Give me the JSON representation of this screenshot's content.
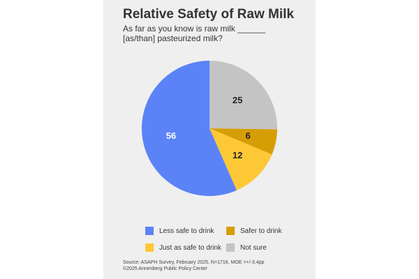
{
  "chart_data": {
    "type": "pie",
    "title": "Relative Safety of Raw Milk",
    "subtitle_lines": [
      "As far as you know is raw milk ______",
      "[as/than] pasteurized milk?"
    ],
    "slices": [
      {
        "label": "Not sure",
        "value": 25,
        "color": "#c4c4c4",
        "label_color": "#222222"
      },
      {
        "label": "Safer to drink",
        "value": 6,
        "color": "#d69e05",
        "label_color": "#222222"
      },
      {
        "label": "Just as safe to drink",
        "value": 12,
        "color": "#fdc835",
        "label_color": "#222222"
      },
      {
        "label": "Less safe to drink",
        "value": 56,
        "color": "#5b83f7",
        "label_color": "#ffffff"
      }
    ],
    "legend": [
      {
        "label": "Less safe to drink",
        "color": "#5b83f7"
      },
      {
        "label": "Safer to drink",
        "color": "#d69e05"
      },
      {
        "label": "Just as safe to drink",
        "color": "#fdc835"
      },
      {
        "label": "Not sure",
        "color": "#c4c4c4"
      }
    ],
    "legend_position": "bottom"
  },
  "source_lines": [
    "Source: ASAPH Survey, February 2025, N=1716, MOE =+/-3.4pp",
    "©2025 Annenberg Public Policy Center"
  ]
}
